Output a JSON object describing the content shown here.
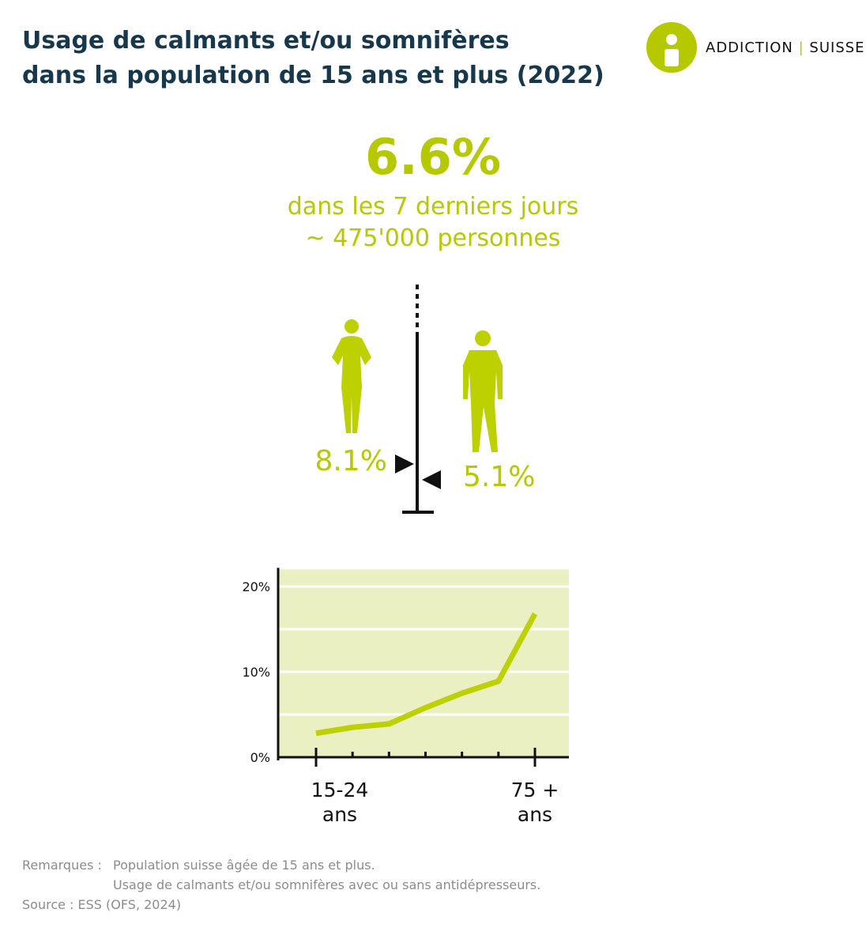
{
  "header": {
    "title_lines": [
      "Usage de calmants et/ou somnifères",
      "dans la population de 15 ans et plus (2022)"
    ],
    "logo": {
      "left": "ADDICTION",
      "right": "SUISSE"
    }
  },
  "headline": {
    "figure": "6.6%",
    "period": "dans les 7 derniers jours",
    "population": "~ 475'000 personnes"
  },
  "chart_data": [
    {
      "type": "marker",
      "values": [
        8.1,
        5.1
      ],
      "value_labels": [
        "8.1%",
        "5.1%"
      ],
      "color": "#b5c800"
    },
    {
      "type": "line",
      "categories": [
        "15-24 ans",
        null,
        null,
        null,
        null,
        null,
        "75 + ans"
      ],
      "values": [
        2.8,
        3.5,
        3.9,
        5.8,
        7.5,
        8.9,
        16.8
      ],
      "color": "#bdd000",
      "background": "#ebf0c3",
      "ylim": [
        0,
        22
      ],
      "yticks": [
        {
          "value": 0,
          "label": "0%"
        },
        {
          "value": 10,
          "label": "10%"
        },
        {
          "value": 20,
          "label": "20%"
        }
      ],
      "ygrid": [
        5,
        10,
        15,
        20
      ]
    }
  ],
  "notes": {
    "label": "Remarques :",
    "lines": [
      "Population suisse âgée de 15 ans et plus.",
      "Usage de calmants et/ou somnifères avec ou sans antidépresseurs."
    ]
  },
  "source": "Source : ESS (OFS, 2024)"
}
